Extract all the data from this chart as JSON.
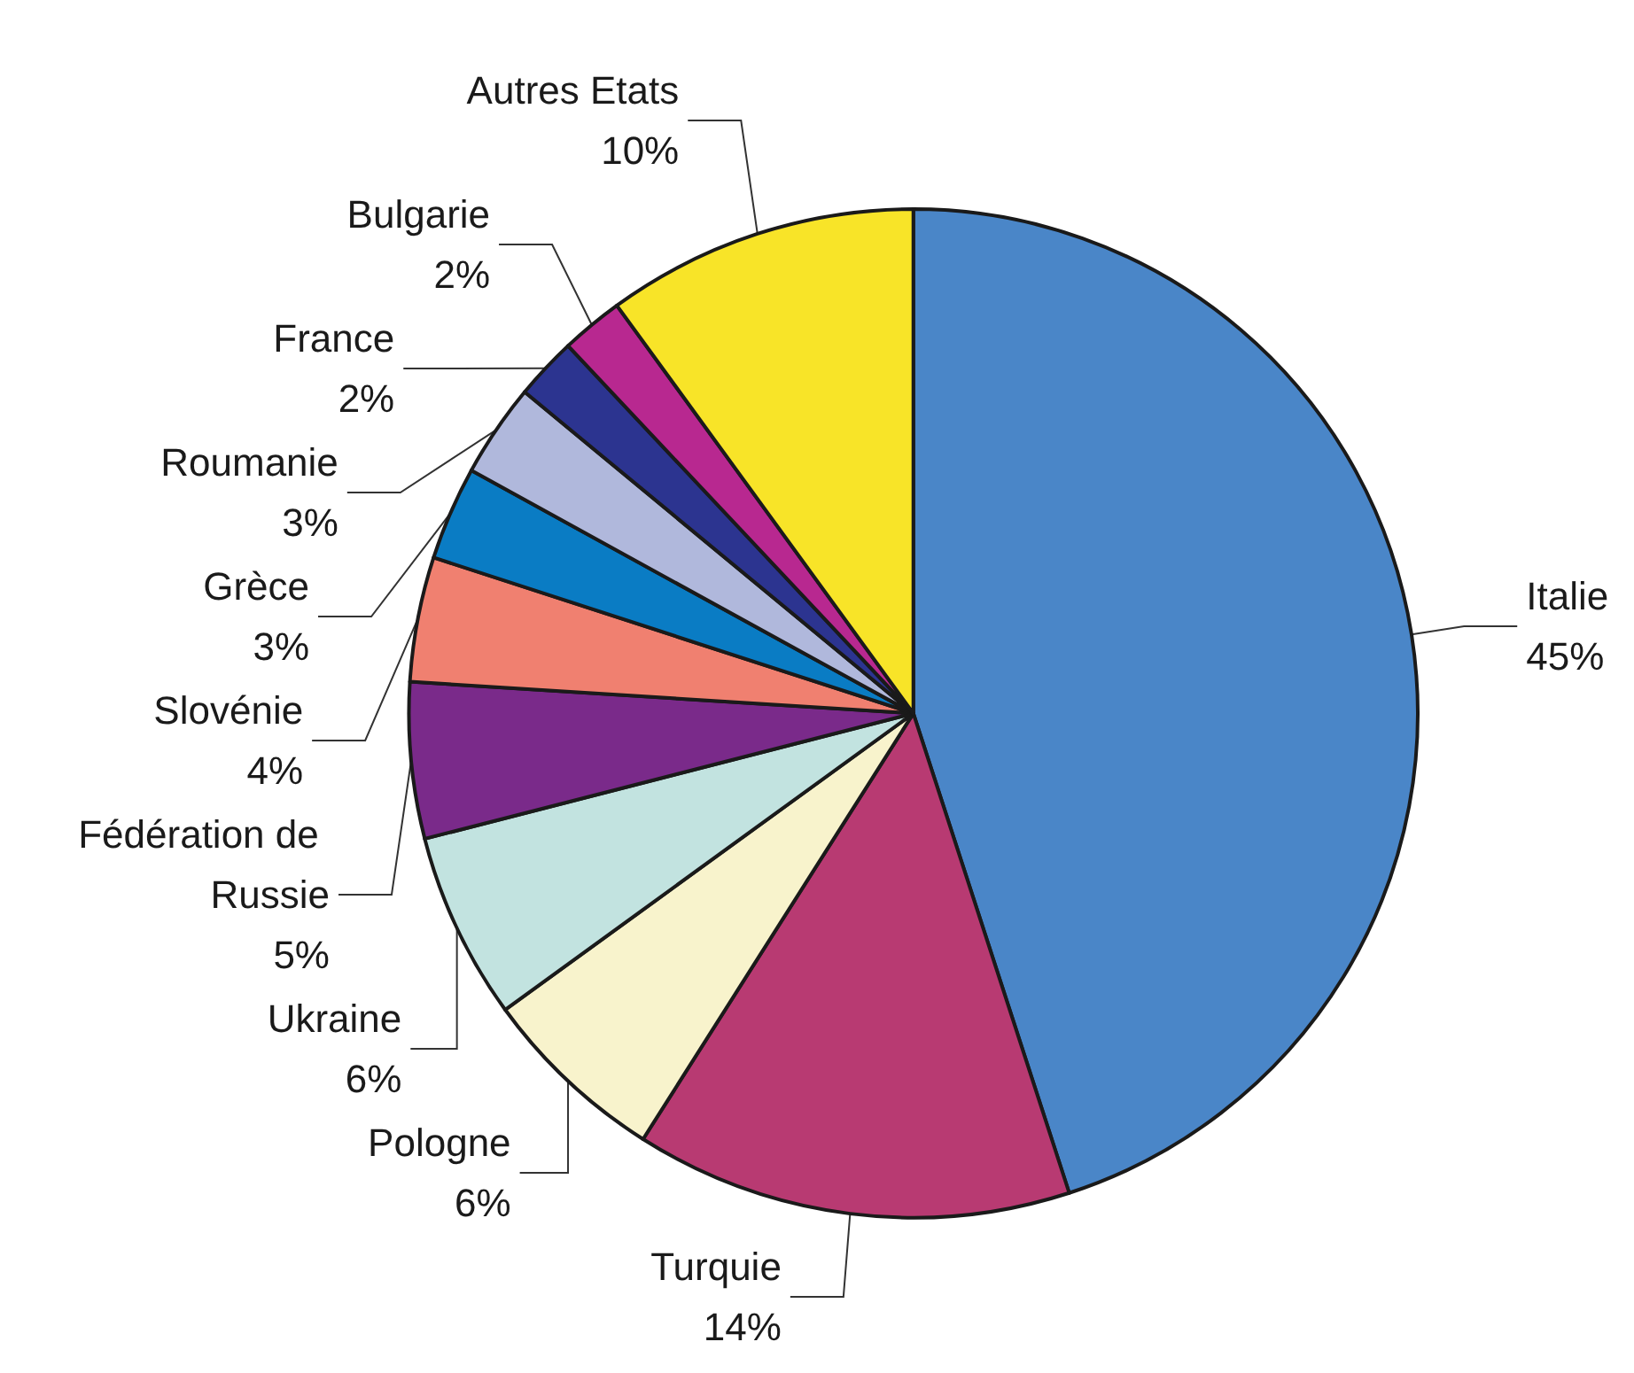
{
  "chart_data": {
    "type": "pie",
    "categories": [
      "Italie",
      "Turquie",
      "Pologne",
      "Ukraine",
      "Fédération de Russie",
      "Slovénie",
      "Grèce",
      "Roumanie",
      "France",
      "Bulgarie",
      "Autres Etats"
    ],
    "values": [
      45,
      14,
      6,
      6,
      5,
      4,
      3,
      3,
      2,
      2,
      10
    ],
    "colors": [
      "#4a86c8",
      "#b83a72",
      "#f8f3cc",
      "#c2e3e0",
      "#7a2a8a",
      "#f08070",
      "#0a7cc4",
      "#b0b8dc",
      "#2c3490",
      "#b82890",
      "#f8e428"
    ],
    "value_labels": [
      "45%",
      "14%",
      "6%",
      "6%",
      "5%",
      "4%",
      "3%",
      "3%",
      "2%",
      "2%",
      "10%"
    ],
    "legend": false
  }
}
